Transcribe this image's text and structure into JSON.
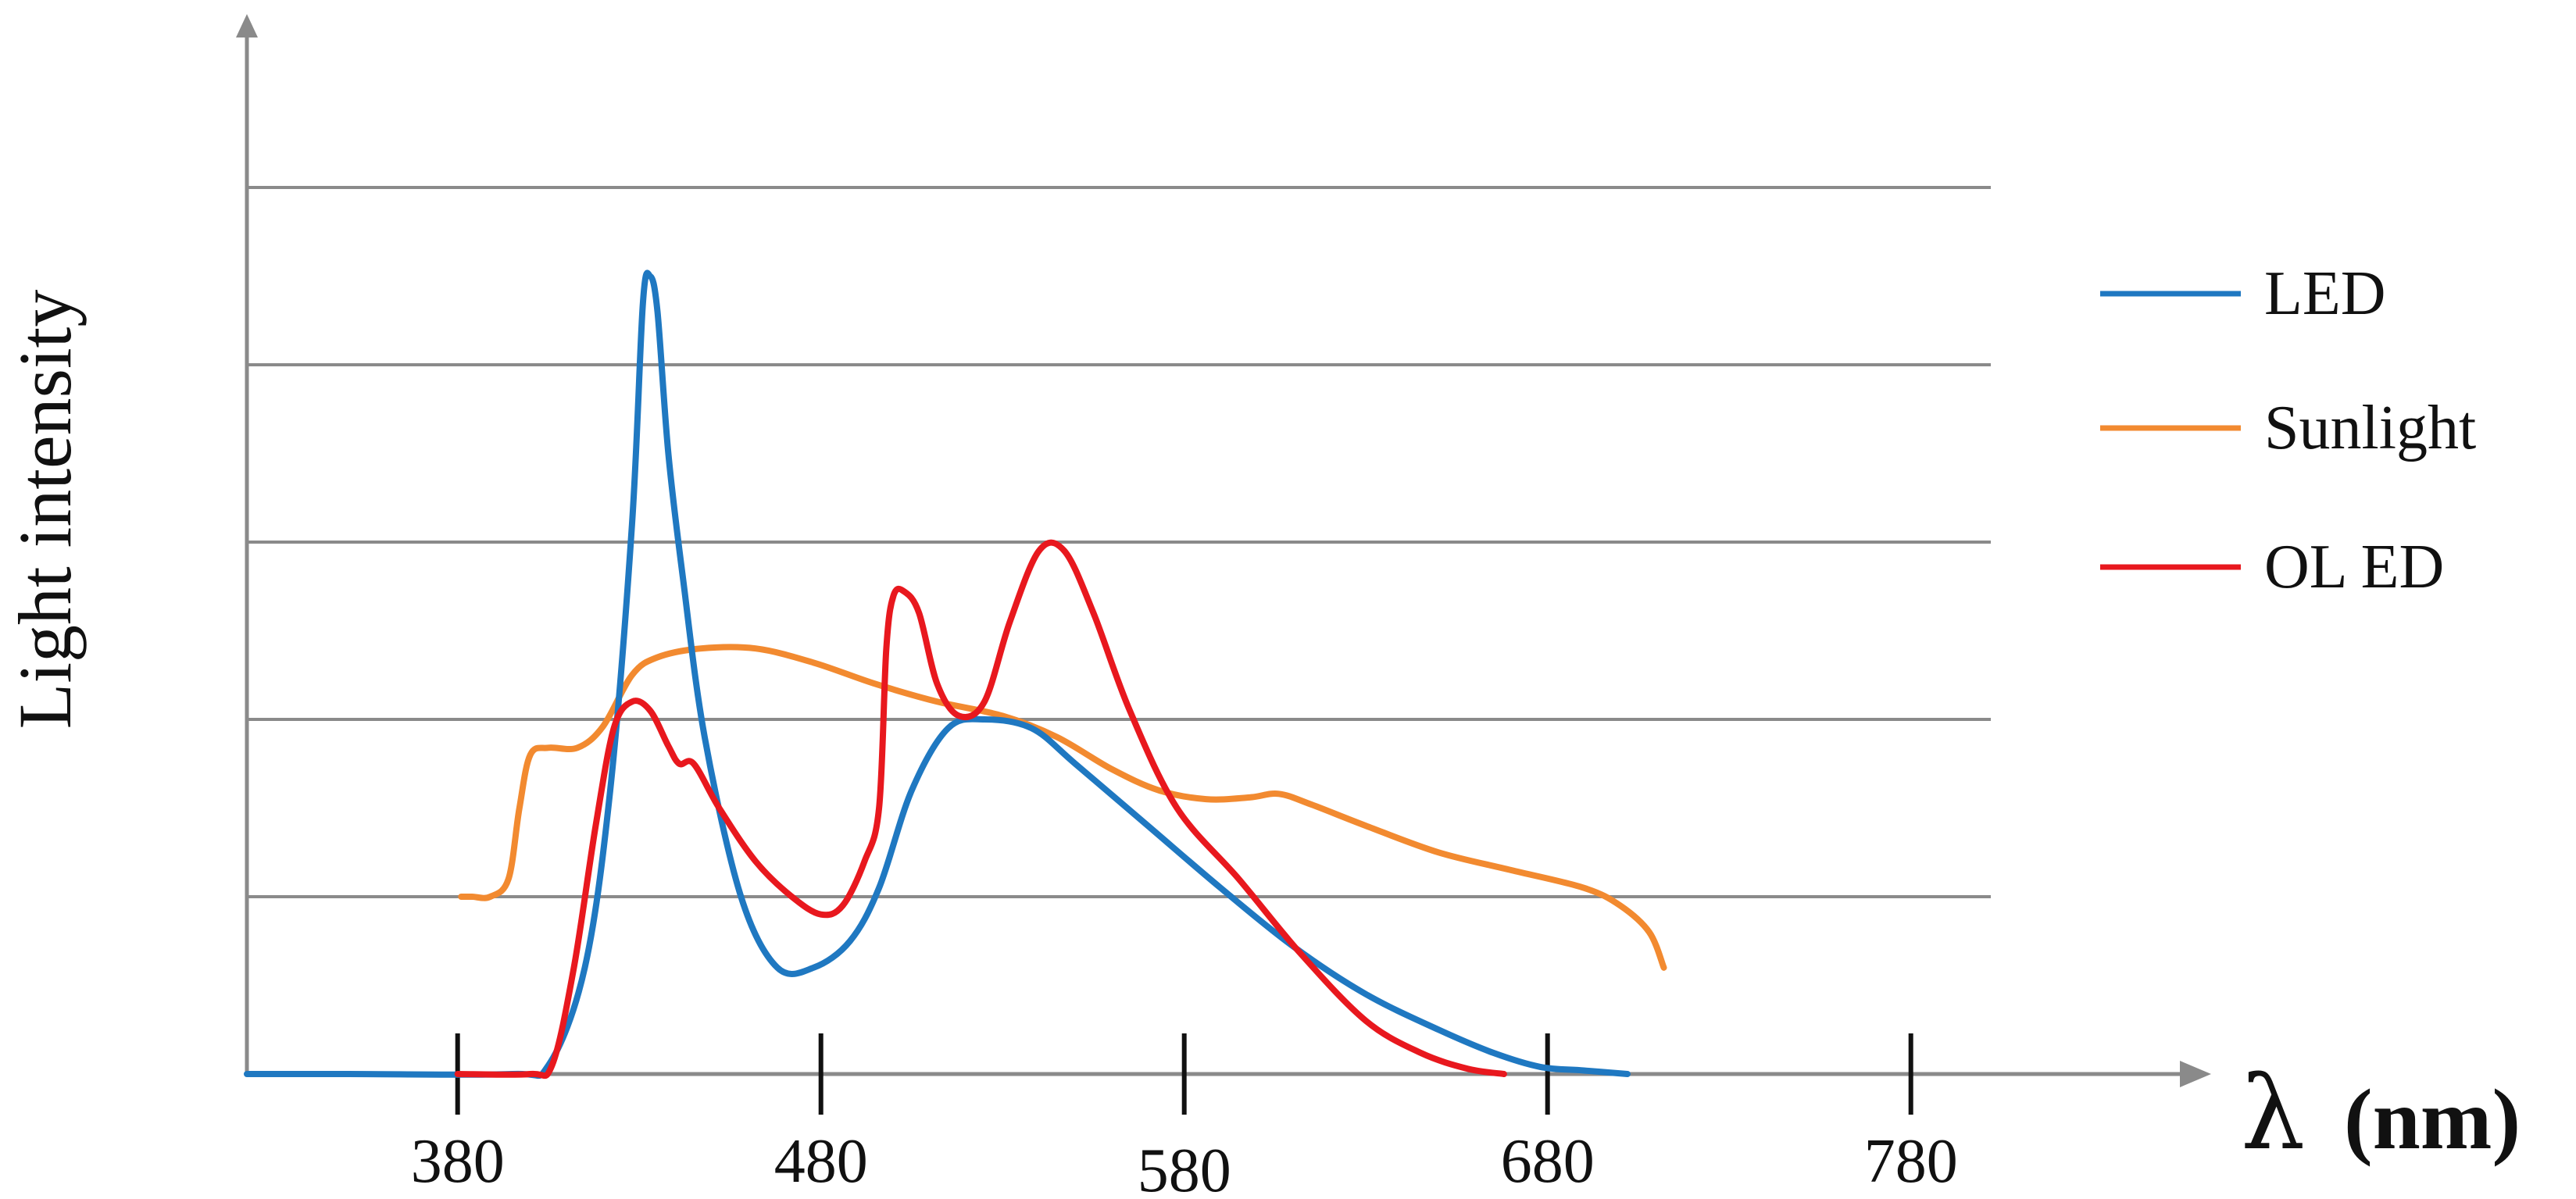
{
  "chart_data": {
    "type": "line",
    "xlabel": "λ",
    "xlabel_unit": "(nm)",
    "ylabel": "Light intensity",
    "x_ticks": [
      380,
      480,
      580,
      680,
      780
    ],
    "xlim": [
      322,
      802
    ],
    "ylim": [
      0,
      5
    ],
    "y_gridlines": [
      1,
      2,
      3,
      4,
      5
    ],
    "grid": true,
    "legend_position": "right",
    "series": [
      {
        "name": "LED",
        "color": "#1f78c1",
        "points": [
          [
            322,
            0
          ],
          [
            350,
            0
          ],
          [
            395,
            0
          ],
          [
            405,
            0.05
          ],
          [
            415,
            0.6
          ],
          [
            422,
            1.6
          ],
          [
            428,
            3.1
          ],
          [
            431,
            4.35
          ],
          [
            433,
            4.5
          ],
          [
            435,
            4.3
          ],
          [
            438,
            3.5
          ],
          [
            442,
            2.8
          ],
          [
            448,
            1.9
          ],
          [
            458,
            1.0
          ],
          [
            468,
            0.6
          ],
          [
            478,
            0.6
          ],
          [
            488,
            0.75
          ],
          [
            496,
            1.05
          ],
          [
            505,
            1.6
          ],
          [
            515,
            1.95
          ],
          [
            525,
            2.0
          ],
          [
            538,
            1.95
          ],
          [
            550,
            1.75
          ],
          [
            570,
            1.4
          ],
          [
            590,
            1.05
          ],
          [
            610,
            0.72
          ],
          [
            630,
            0.45
          ],
          [
            650,
            0.25
          ],
          [
            665,
            0.12
          ],
          [
            678,
            0.04
          ],
          [
            690,
            0.02
          ],
          [
            702,
            0
          ]
        ]
      },
      {
        "name": "Sunlight",
        "color": "#f28a30",
        "points": [
          [
            381,
            1.0
          ],
          [
            384,
            1.0
          ],
          [
            389,
            1.0
          ],
          [
            394,
            1.1
          ],
          [
            397,
            1.5
          ],
          [
            400,
            1.8
          ],
          [
            405,
            1.84
          ],
          [
            413,
            1.84
          ],
          [
            420,
            1.96
          ],
          [
            428,
            2.25
          ],
          [
            435,
            2.35
          ],
          [
            447,
            2.4
          ],
          [
            462,
            2.4
          ],
          [
            478,
            2.32
          ],
          [
            495,
            2.2
          ],
          [
            512,
            2.1
          ],
          [
            530,
            2.02
          ],
          [
            545,
            1.9
          ],
          [
            560,
            1.72
          ],
          [
            573,
            1.6
          ],
          [
            586,
            1.55
          ],
          [
            598,
            1.56
          ],
          [
            606,
            1.58
          ],
          [
            615,
            1.52
          ],
          [
            630,
            1.4
          ],
          [
            650,
            1.25
          ],
          [
            670,
            1.15
          ],
          [
            690,
            1.05
          ],
          [
            700,
            0.95
          ],
          [
            708,
            0.8
          ],
          [
            712,
            0.6
          ]
        ]
      },
      {
        "name": "OLED",
        "color": "#e8181e",
        "points": [
          [
            380,
            0
          ],
          [
            400,
            0
          ],
          [
            406,
            0.05
          ],
          [
            412,
            0.6
          ],
          [
            418,
            1.4
          ],
          [
            423,
            1.95
          ],
          [
            428,
            2.1
          ],
          [
            433,
            2.05
          ],
          [
            438,
            1.85
          ],
          [
            441,
            1.75
          ],
          [
            445,
            1.75
          ],
          [
            452,
            1.5
          ],
          [
            462,
            1.2
          ],
          [
            472,
            1.0
          ],
          [
            480,
            0.9
          ],
          [
            486,
            0.95
          ],
          [
            492,
            1.2
          ],
          [
            496,
            1.5
          ],
          [
            498,
            2.4
          ],
          [
            500,
            2.7
          ],
          [
            503,
            2.72
          ],
          [
            507,
            2.6
          ],
          [
            512,
            2.2
          ],
          [
            518,
            2.02
          ],
          [
            525,
            2.1
          ],
          [
            532,
            2.55
          ],
          [
            540,
            2.95
          ],
          [
            547,
            2.95
          ],
          [
            555,
            2.6
          ],
          [
            565,
            2.05
          ],
          [
            578,
            1.5
          ],
          [
            595,
            1.1
          ],
          [
            612,
            0.68
          ],
          [
            630,
            0.3
          ],
          [
            645,
            0.12
          ],
          [
            658,
            0.03
          ],
          [
            668,
            0
          ]
        ]
      }
    ]
  },
  "legend": [
    {
      "label": "LED",
      "color": "#1f78c1"
    },
    {
      "label": "Sunlight",
      "color": "#f28a30"
    },
    {
      "label": "OL ED",
      "color": "#e8181e"
    }
  ]
}
